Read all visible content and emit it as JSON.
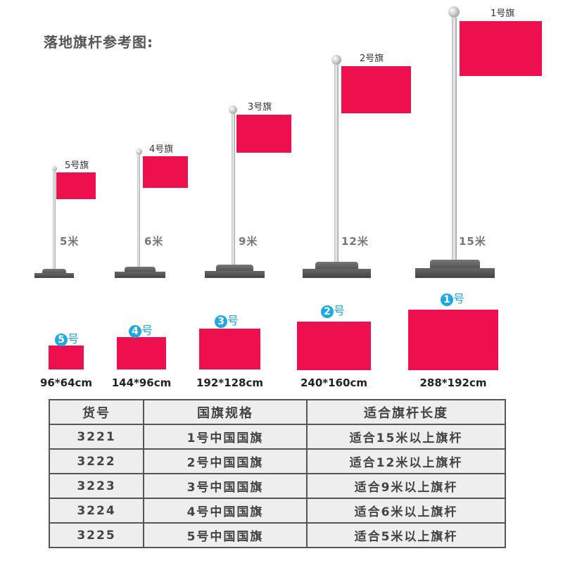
{
  "title": "落地旗杆参考图:",
  "flag_color": "#ee0f4f",
  "badge_color": "#1ea9e1",
  "poles": [
    {
      "flag_label": "5号旗",
      "height_label": "5米"
    },
    {
      "flag_label": "4号旗",
      "height_label": "6米"
    },
    {
      "flag_label": "3号旗",
      "height_label": "9米"
    },
    {
      "flag_label": "2号旗",
      "height_label": "12米"
    },
    {
      "flag_label": "1号旗",
      "height_label": "15米"
    }
  ],
  "flags": [
    {
      "number": "5",
      "suffix": "号",
      "size": "96*64cm"
    },
    {
      "number": "4",
      "suffix": "号",
      "size": "144*96cm"
    },
    {
      "number": "3",
      "suffix": "号",
      "size": "192*128cm"
    },
    {
      "number": "2",
      "suffix": "号",
      "size": "240*160cm"
    },
    {
      "number": "1",
      "suffix": "号",
      "size": "288*192cm"
    }
  ],
  "table": {
    "headers": [
      "货号",
      "国旗规格",
      "适合旗杆长度"
    ],
    "rows": [
      [
        "3221",
        "1号中国国旗",
        "适合15米以上旗杆"
      ],
      [
        "3222",
        "2号中国国旗",
        "适合12米以上旗杆"
      ],
      [
        "3223",
        "3号中国国旗",
        "适合9米以上旗杆"
      ],
      [
        "3224",
        "4号中国国旗",
        "适合6米以上旗杆"
      ],
      [
        "3225",
        "5号中国国旗",
        "适合5米以上旗杆"
      ]
    ]
  }
}
